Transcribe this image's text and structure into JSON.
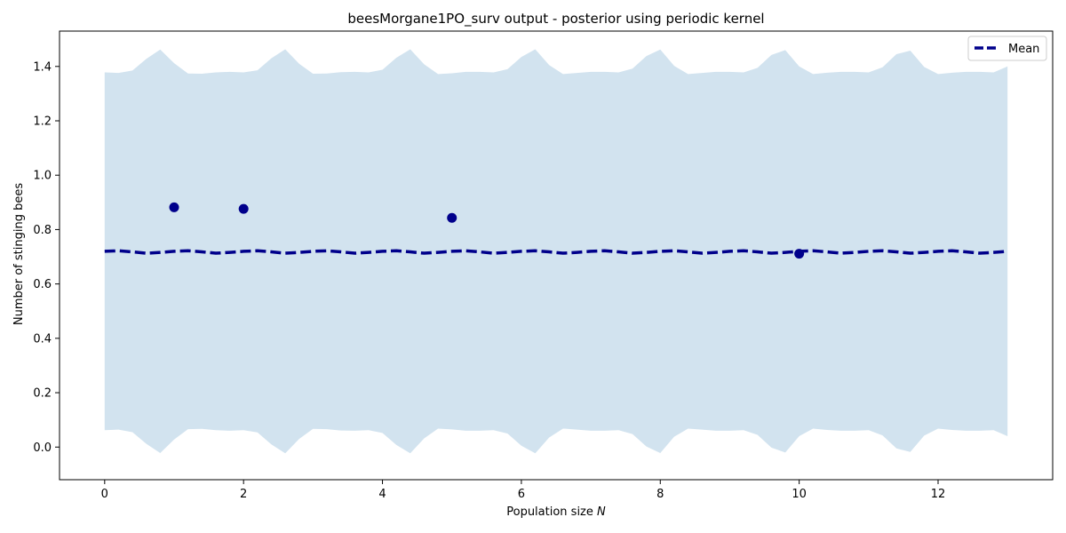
{
  "chart_data": {
    "type": "line",
    "title": "beesMorgane1PO_surv output - posterior using periodic kernel",
    "xlabel": "Population size ",
    "xlabel_var": "N",
    "ylabel": "Number of stinging bees",
    "xlim": [
      -0.65,
      13.65
    ],
    "ylim": [
      -0.12,
      1.53
    ],
    "xticks": [
      0,
      2,
      4,
      6,
      8,
      10,
      12
    ],
    "yticks": [
      0.0,
      0.2,
      0.4,
      0.6,
      0.8,
      1.0,
      1.2,
      1.4
    ],
    "ytick_labels": [
      "0.0",
      "0.2",
      "0.4",
      "0.6",
      "0.8",
      "1.0",
      "1.2",
      "1.4"
    ],
    "grid": false,
    "legend_position": "top-right",
    "series": [
      {
        "name": "Mean",
        "style": "dashed",
        "color": "#00008b",
        "x": [
          0,
          0.2,
          0.4,
          0.6,
          0.8,
          1.0,
          1.2,
          1.4,
          1.6,
          1.8,
          2.0,
          2.2,
          2.4,
          2.6,
          2.8,
          3.0,
          3.2,
          3.4,
          3.6,
          3.8,
          4.0,
          4.2,
          4.4,
          4.6,
          4.8,
          5.0,
          5.2,
          5.4,
          5.6,
          5.8,
          6.0,
          6.2,
          6.4,
          6.6,
          6.8,
          7.0,
          7.2,
          7.4,
          7.6,
          7.8,
          8.0,
          8.2,
          8.4,
          8.6,
          8.8,
          9.0,
          9.2,
          9.4,
          9.6,
          9.8,
          10.0,
          10.2,
          10.4,
          10.6,
          10.8,
          11.0,
          11.2,
          11.4,
          11.6,
          11.8,
          12.0,
          12.2,
          12.4,
          12.6,
          12.8,
          13.0
        ],
        "y": [
          0.72,
          0.722,
          0.718,
          0.713,
          0.716,
          0.72,
          0.722,
          0.718,
          0.713,
          0.716,
          0.72,
          0.722,
          0.718,
          0.713,
          0.716,
          0.72,
          0.722,
          0.718,
          0.713,
          0.716,
          0.72,
          0.722,
          0.718,
          0.713,
          0.716,
          0.72,
          0.722,
          0.718,
          0.713,
          0.716,
          0.72,
          0.722,
          0.718,
          0.713,
          0.716,
          0.72,
          0.722,
          0.718,
          0.713,
          0.716,
          0.72,
          0.722,
          0.718,
          0.713,
          0.716,
          0.72,
          0.722,
          0.718,
          0.713,
          0.716,
          0.72,
          0.722,
          0.718,
          0.713,
          0.716,
          0.72,
          0.722,
          0.718,
          0.713,
          0.716,
          0.72,
          0.722,
          0.718,
          0.713,
          0.716,
          0.72
        ]
      }
    ],
    "band": {
      "color": "#d2e3ef",
      "x": [
        0,
        0.2,
        0.4,
        0.6,
        0.8,
        1.0,
        1.2,
        1.4,
        1.6,
        1.8,
        2.0,
        2.2,
        2.4,
        2.6,
        2.8,
        3.0,
        3.2,
        3.4,
        3.6,
        3.8,
        4.0,
        4.2,
        4.4,
        4.6,
        4.8,
        5.0,
        5.2,
        5.4,
        5.6,
        5.8,
        6.0,
        6.2,
        6.4,
        6.6,
        6.8,
        7.0,
        7.2,
        7.4,
        7.6,
        7.8,
        8.0,
        8.2,
        8.4,
        8.6,
        8.8,
        9.0,
        9.2,
        9.4,
        9.6,
        9.8,
        10.0,
        10.2,
        10.4,
        10.6,
        10.8,
        11.0,
        11.2,
        11.4,
        11.6,
        11.8,
        12.0,
        12.2,
        12.4,
        12.6,
        12.8,
        13.0
      ],
      "upper": [
        1.378,
        1.376,
        1.385,
        1.428,
        1.462,
        1.412,
        1.374,
        1.373,
        1.378,
        1.38,
        1.378,
        1.386,
        1.43,
        1.463,
        1.41,
        1.373,
        1.374,
        1.379,
        1.38,
        1.378,
        1.388,
        1.432,
        1.463,
        1.408,
        1.372,
        1.375,
        1.38,
        1.38,
        1.378,
        1.39,
        1.435,
        1.463,
        1.405,
        1.372,
        1.376,
        1.38,
        1.38,
        1.378,
        1.392,
        1.438,
        1.462,
        1.402,
        1.372,
        1.376,
        1.38,
        1.38,
        1.378,
        1.395,
        1.442,
        1.46,
        1.4,
        1.372,
        1.377,
        1.38,
        1.38,
        1.378,
        1.397,
        1.445,
        1.458,
        1.398,
        1.372,
        1.377,
        1.38,
        1.38,
        1.378,
        1.4
      ],
      "lower": [
        0.062,
        0.064,
        0.055,
        0.012,
        -0.022,
        0.028,
        0.066,
        0.067,
        0.062,
        0.06,
        0.062,
        0.054,
        0.01,
        -0.023,
        0.03,
        0.067,
        0.066,
        0.061,
        0.06,
        0.062,
        0.052,
        0.008,
        -0.023,
        0.032,
        0.068,
        0.065,
        0.06,
        0.06,
        0.062,
        0.05,
        0.005,
        -0.023,
        0.035,
        0.068,
        0.064,
        0.06,
        0.06,
        0.062,
        0.048,
        0.002,
        -0.022,
        0.038,
        0.068,
        0.064,
        0.06,
        0.06,
        0.062,
        0.045,
        -0.002,
        -0.02,
        0.04,
        0.068,
        0.063,
        0.06,
        0.06,
        0.062,
        0.043,
        -0.005,
        -0.018,
        0.042,
        0.068,
        0.063,
        0.06,
        0.06,
        0.062,
        0.04
      ]
    },
    "points": {
      "color": "#00008b",
      "x": [
        1,
        2,
        5,
        10
      ],
      "y": [
        0.882,
        0.876,
        0.843,
        0.711
      ]
    }
  }
}
